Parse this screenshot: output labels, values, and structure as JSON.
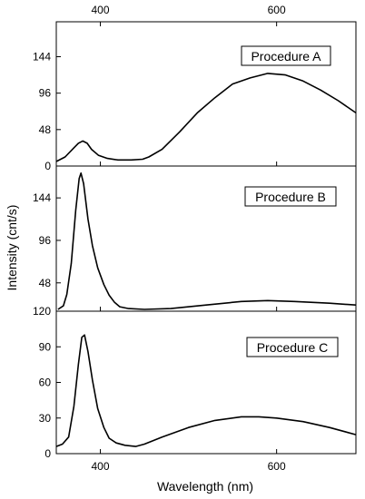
{
  "chart_data": {
    "type": "line",
    "shared_xlabel": "Wavelength (nm)",
    "shared_ylabel": "Intensity (cnt/s)",
    "xlim": [
      350,
      690
    ],
    "x_ticks": [
      400,
      600
    ],
    "top_x_ticks": [
      400,
      600
    ],
    "panels": [
      {
        "label": "Procedure A",
        "ylim": [
          0,
          190
        ],
        "y_ticks": [
          0,
          48,
          96,
          144
        ],
        "points": [
          [
            350,
            6
          ],
          [
            360,
            12
          ],
          [
            370,
            24
          ],
          [
            375,
            30
          ],
          [
            380,
            33
          ],
          [
            385,
            30
          ],
          [
            390,
            22
          ],
          [
            398,
            14
          ],
          [
            408,
            10
          ],
          [
            420,
            8
          ],
          [
            435,
            8
          ],
          [
            448,
            9
          ],
          [
            455,
            12
          ],
          [
            470,
            22
          ],
          [
            490,
            45
          ],
          [
            510,
            70
          ],
          [
            530,
            90
          ],
          [
            550,
            108
          ],
          [
            570,
            116
          ],
          [
            590,
            122
          ],
          [
            610,
            120
          ],
          [
            630,
            112
          ],
          [
            650,
            100
          ],
          [
            670,
            86
          ],
          [
            690,
            70
          ]
        ]
      },
      {
        "label": "Procedure B",
        "ylim": [
          16,
          180
        ],
        "y_ticks": [
          48,
          96,
          144
        ],
        "points": [
          [
            352,
            18
          ],
          [
            358,
            22
          ],
          [
            362,
            35
          ],
          [
            367,
            70
          ],
          [
            372,
            130
          ],
          [
            376,
            166
          ],
          [
            378,
            172
          ],
          [
            381,
            160
          ],
          [
            386,
            120
          ],
          [
            391,
            90
          ],
          [
            397,
            65
          ],
          [
            404,
            46
          ],
          [
            410,
            34
          ],
          [
            416,
            26
          ],
          [
            422,
            21
          ],
          [
            432,
            19
          ],
          [
            450,
            18
          ],
          [
            480,
            19
          ],
          [
            520,
            23
          ],
          [
            560,
            27
          ],
          [
            590,
            28
          ],
          [
            620,
            27
          ],
          [
            660,
            25
          ],
          [
            690,
            23
          ]
        ]
      },
      {
        "label": "Procedure C",
        "ylim": [
          0,
          120
        ],
        "y_ticks": [
          0,
          30,
          60,
          90,
          120
        ],
        "points": [
          [
            350,
            6
          ],
          [
            357,
            8
          ],
          [
            364,
            14
          ],
          [
            370,
            40
          ],
          [
            375,
            75
          ],
          [
            379,
            98
          ],
          [
            382,
            100
          ],
          [
            386,
            86
          ],
          [
            391,
            62
          ],
          [
            397,
            38
          ],
          [
            404,
            22
          ],
          [
            410,
            13
          ],
          [
            418,
            9
          ],
          [
            428,
            7
          ],
          [
            440,
            6
          ],
          [
            450,
            8
          ],
          [
            470,
            14
          ],
          [
            500,
            22
          ],
          [
            530,
            28
          ],
          [
            560,
            31
          ],
          [
            580,
            31
          ],
          [
            600,
            30
          ],
          [
            630,
            27
          ],
          [
            660,
            22
          ],
          [
            690,
            16
          ]
        ]
      }
    ]
  }
}
